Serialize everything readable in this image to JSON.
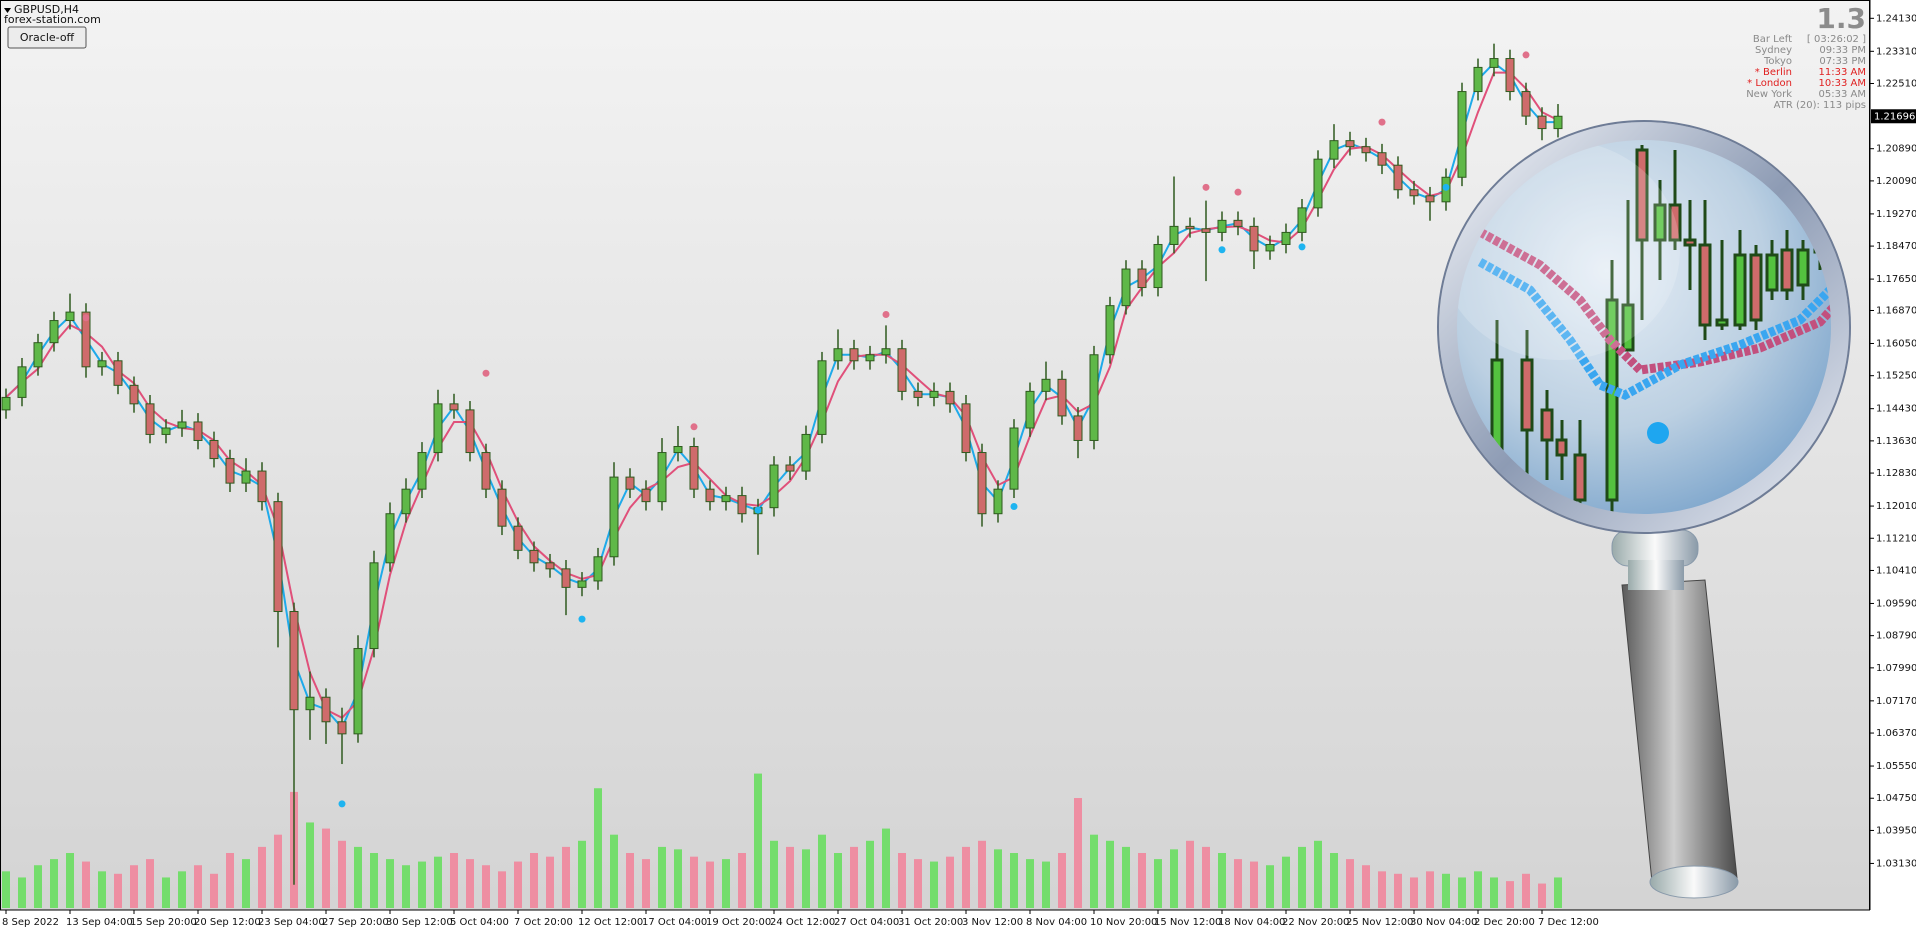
{
  "chart_data": {
    "type": "candlestick",
    "symbol": "GBPUSD,H4",
    "watermark": "forex-station.com",
    "button": "Oracle-off",
    "version": "1.3",
    "bar_left_label": "Bar Left",
    "bar_left": "[ 03:26:02 ]",
    "clocks": [
      {
        "city": "Sydney",
        "time": "09:33 PM",
        "color": "#8a8a8a"
      },
      {
        "city": "Tokyo",
        "time": "07:33 PM",
        "color": "#8a8a8a"
      },
      {
        "city": "* Berlin",
        "time": "11:33 AM",
        "color": "#e02020"
      },
      {
        "city": "* London",
        "time": "10:33 AM",
        "color": "#e02020"
      },
      {
        "city": "New York",
        "time": "05:33 AM",
        "color": "#8a8a8a"
      }
    ],
    "atr": "ATR (20): 113 pips",
    "categories": [
      "8 Sep 2022",
      null,
      null,
      null,
      "13 Sep 04:00",
      null,
      null,
      null,
      "15 Sep 20:00",
      null,
      null,
      null,
      "20 Sep 12:00",
      null,
      null,
      null,
      "23 Sep 04:00",
      null,
      null,
      null,
      "27 Sep 20:00",
      null,
      null,
      null,
      "30 Sep 12:00",
      null,
      null,
      null,
      "5 Oct 04:00",
      null,
      null,
      null,
      "7 Oct 20:00",
      null,
      null,
      null,
      "12 Oct 12:00",
      null,
      null,
      null,
      "17 Oct 04:00",
      null,
      null,
      null,
      "19 Oct 20:00",
      null,
      null,
      null,
      "24 Oct 12:00",
      null,
      null,
      null,
      "27 Oct 04:00",
      null,
      null,
      null,
      "31 Oct 20:00",
      null,
      null,
      null,
      "3 Nov 12:00",
      null,
      null,
      null,
      "8 Nov 04:00",
      null,
      null,
      null,
      "10 Nov 20:00",
      null,
      null,
      null,
      "15 Nov 12:00",
      null,
      null,
      null,
      "18 Nov 04:00",
      null,
      null,
      null,
      "22 Nov 20:00",
      null,
      null,
      null,
      "25 Nov 12:00",
      null,
      null,
      null,
      "30 Nov 04:00",
      null,
      null,
      null,
      "2 Dec 20:00",
      null,
      null,
      null,
      "7 Dec 12:00",
      null
    ],
    "ohlc": [
      [
        1.144,
        1.1493,
        1.1418,
        1.1471
      ],
      [
        1.1471,
        1.1569,
        1.1449,
        1.1547
      ],
      [
        1.1547,
        1.1629,
        1.1525,
        1.1607
      ],
      [
        1.1607,
        1.1684,
        1.1585,
        1.1662
      ],
      [
        1.1662,
        1.1729,
        1.164,
        1.1683
      ],
      [
        1.1683,
        1.1705,
        1.152,
        1.1547
      ],
      [
        1.1547,
        1.1584,
        1.1525,
        1.1562
      ],
      [
        1.1562,
        1.1584,
        1.1479,
        1.1501
      ],
      [
        1.1501,
        1.1523,
        1.1433,
        1.1455
      ],
      [
        1.1455,
        1.1477,
        1.1357,
        1.1379
      ],
      [
        1.1379,
        1.1417,
        1.1357,
        1.1395
      ],
      [
        1.1395,
        1.144,
        1.1373,
        1.141
      ],
      [
        1.141,
        1.1432,
        1.1342,
        1.1364
      ],
      [
        1.1364,
        1.1386,
        1.1297,
        1.1319
      ],
      [
        1.1319,
        1.1341,
        1.1236,
        1.1258
      ],
      [
        1.1258,
        1.132,
        1.1236,
        1.1288
      ],
      [
        1.1288,
        1.131,
        1.119,
        1.1212
      ],
      [
        1.1212,
        1.1234,
        1.085,
        1.0939
      ],
      [
        1.0939,
        1.0961,
        1.026,
        1.0695
      ],
      [
        1.0695,
        1.079,
        1.062,
        1.0726
      ],
      [
        1.0726,
        1.0748,
        1.061,
        1.0665
      ],
      [
        1.0665,
        1.07,
        1.056,
        1.0635
      ],
      [
        1.0635,
        1.088,
        1.0613,
        1.0847
      ],
      [
        1.0847,
        1.109,
        1.0825,
        1.106
      ],
      [
        1.106,
        1.121,
        1.1038,
        1.1182
      ],
      [
        1.1182,
        1.127,
        1.116,
        1.1243
      ],
      [
        1.1243,
        1.136,
        1.1221,
        1.1334
      ],
      [
        1.1334,
        1.149,
        1.1312,
        1.1455
      ],
      [
        1.1455,
        1.148,
        1.1418,
        1.144
      ],
      [
        1.144,
        1.1462,
        1.1312,
        1.1334
      ],
      [
        1.1334,
        1.1356,
        1.1221,
        1.1243
      ],
      [
        1.1243,
        1.1265,
        1.1129,
        1.1151
      ],
      [
        1.1151,
        1.1173,
        1.1069,
        1.1091
      ],
      [
        1.1091,
        1.1113,
        1.1038,
        1.106
      ],
      [
        1.106,
        1.1082,
        1.1023,
        1.1045
      ],
      [
        1.1045,
        1.1067,
        1.093,
        1.0999
      ],
      [
        1.0999,
        1.1037,
        1.0977,
        1.1015
      ],
      [
        1.1015,
        1.1097,
        1.0993,
        1.1075
      ],
      [
        1.1075,
        1.131,
        1.1053,
        1.1273
      ],
      [
        1.1273,
        1.1295,
        1.1221,
        1.1243
      ],
      [
        1.1243,
        1.1265,
        1.119,
        1.1212
      ],
      [
        1.1212,
        1.137,
        1.119,
        1.1334
      ],
      [
        1.1334,
        1.14,
        1.1312,
        1.1349
      ],
      [
        1.1349,
        1.1371,
        1.1221,
        1.1243
      ],
      [
        1.1243,
        1.1265,
        1.119,
        1.1212
      ],
      [
        1.1212,
        1.1249,
        1.119,
        1.1227
      ],
      [
        1.1227,
        1.1249,
        1.116,
        1.1182
      ],
      [
        1.1182,
        1.1219,
        1.108,
        1.1197
      ],
      [
        1.1197,
        1.1325,
        1.1175,
        1.1303
      ],
      [
        1.1303,
        1.1325,
        1.1266,
        1.1288
      ],
      [
        1.1288,
        1.1401,
        1.1266,
        1.1379
      ],
      [
        1.1379,
        1.1584,
        1.1357,
        1.1562
      ],
      [
        1.1562,
        1.164,
        1.154,
        1.1592
      ],
      [
        1.1592,
        1.1614,
        1.154,
        1.1562
      ],
      [
        1.1562,
        1.1599,
        1.154,
        1.1577
      ],
      [
        1.1577,
        1.165,
        1.1555,
        1.1592
      ],
      [
        1.1592,
        1.1614,
        1.1464,
        1.1486
      ],
      [
        1.1486,
        1.1508,
        1.1449,
        1.1471
      ],
      [
        1.1471,
        1.1508,
        1.1449,
        1.1486
      ],
      [
        1.1486,
        1.1508,
        1.1433,
        1.1455
      ],
      [
        1.1455,
        1.1477,
        1.1312,
        1.1334
      ],
      [
        1.1334,
        1.1356,
        1.115,
        1.1182
      ],
      [
        1.1182,
        1.1265,
        1.116,
        1.1243
      ],
      [
        1.1243,
        1.1417,
        1.1221,
        1.1395
      ],
      [
        1.1395,
        1.1508,
        1.1373,
        1.1486
      ],
      [
        1.1486,
        1.156,
        1.1464,
        1.1516
      ],
      [
        1.1516,
        1.1538,
        1.1403,
        1.1425
      ],
      [
        1.1425,
        1.1447,
        1.132,
        1.1364
      ],
      [
        1.1364,
        1.1599,
        1.1342,
        1.1577
      ],
      [
        1.1577,
        1.1721,
        1.1555,
        1.1699
      ],
      [
        1.1699,
        1.1812,
        1.1677,
        1.179
      ],
      [
        1.179,
        1.1812,
        1.1722,
        1.1744
      ],
      [
        1.1744,
        1.1873,
        1.1722,
        1.1851
      ],
      [
        1.1851,
        1.202,
        1.1829,
        1.1896
      ],
      [
        1.1896,
        1.1918,
        1.1868,
        1.189
      ],
      [
        1.189,
        1.196,
        1.176,
        1.1881
      ],
      [
        1.1881,
        1.1933,
        1.1859,
        1.1911
      ],
      [
        1.1911,
        1.1933,
        1.1874,
        1.1896
      ],
      [
        1.1896,
        1.1918,
        1.179,
        1.1835
      ],
      [
        1.1835,
        1.1873,
        1.1813,
        1.1851
      ],
      [
        1.1851,
        1.1903,
        1.1829,
        1.1881
      ],
      [
        1.1881,
        1.1964,
        1.1859,
        1.1942
      ],
      [
        1.1942,
        1.2085,
        1.192,
        1.2063
      ],
      [
        1.2063,
        1.215,
        1.2041,
        1.2109
      ],
      [
        1.2109,
        1.2131,
        1.2072,
        1.2094
      ],
      [
        1.2094,
        1.2116,
        1.2057,
        1.2079
      ],
      [
        1.2079,
        1.2101,
        1.2026,
        1.2048
      ],
      [
        1.2048,
        1.207,
        1.1965,
        1.1987
      ],
      [
        1.1987,
        1.2009,
        1.195,
        1.1972
      ],
      [
        1.1972,
        1.1994,
        1.191,
        1.1957
      ],
      [
        1.1957,
        1.204,
        1.1935,
        1.2018
      ],
      [
        1.2018,
        1.2253,
        1.1996,
        1.2231
      ],
      [
        1.2231,
        1.2313,
        1.2209,
        1.2291
      ],
      [
        1.2291,
        1.235,
        1.2269,
        1.2313
      ],
      [
        1.2313,
        1.2335,
        1.2209,
        1.2231
      ],
      [
        1.2231,
        1.2253,
        1.2148,
        1.217
      ],
      [
        1.217,
        1.2192,
        1.211,
        1.2139
      ],
      [
        1.2139,
        1.22,
        1.2117,
        1.21696
      ]
    ],
    "up_color": "#5fb848",
    "down_color": "#cf6b6b",
    "candle_outline": "#2f5a1f",
    "series": [
      {
        "color": "#1eaaea",
        "values": [
          1.1471,
          1.1509,
          1.1577,
          1.1635,
          1.1673,
          1.1615,
          1.1555,
          1.1532,
          1.1478,
          1.1417,
          1.1387,
          1.1403,
          1.1387,
          1.1342,
          1.1289,
          1.1273,
          1.125,
          1.1076,
          1.0817,
          1.0711,
          1.0696,
          1.065,
          1.0741,
          1.0954,
          1.1121,
          1.1213,
          1.1289,
          1.1395,
          1.1448,
          1.1387,
          1.1289,
          1.1197,
          1.1121,
          1.1076,
          1.1053,
          1.1022,
          1.1007,
          1.1045,
          1.1174,
          1.1258,
          1.1228,
          1.1273,
          1.1342,
          1.1296,
          1.1228,
          1.122,
          1.1205,
          1.119,
          1.125,
          1.1296,
          1.1334,
          1.1471,
          1.1577,
          1.1577,
          1.157,
          1.1585,
          1.1539,
          1.1479,
          1.1479,
          1.1471,
          1.1395,
          1.1258,
          1.1213,
          1.1319,
          1.1441,
          1.1501,
          1.1471,
          1.1395,
          1.1471,
          1.1638,
          1.1745,
          1.1767,
          1.1798,
          1.1874,
          1.1893,
          1.1886,
          1.1896,
          1.1904,
          1.1866,
          1.1843,
          1.1866,
          1.1912,
          1.2003,
          1.2086,
          1.2102,
          1.2087,
          1.2064,
          1.2018,
          1.198,
          1.1965,
          1.1988,
          1.2125,
          1.2261,
          1.2302,
          1.2272,
          1.2201,
          1.2155,
          1.2155
        ]
      },
      {
        "color": "#e0507a",
        "values": [
          1.1471,
          1.1509,
          1.1542,
          1.1605,
          1.1651,
          1.1631,
          1.1597,
          1.1537,
          1.1506,
          1.1445,
          1.141,
          1.1395,
          1.139,
          1.1364,
          1.1314,
          1.1288,
          1.1253,
          1.1146,
          1.0949,
          1.0787,
          1.0695,
          1.0675,
          1.0716,
          1.0847,
          1.103,
          1.1162,
          1.1253,
          1.1344,
          1.141,
          1.141,
          1.1339,
          1.1243,
          1.1162,
          1.1101,
          1.1065,
          1.1035,
          1.102,
          1.103,
          1.1121,
          1.1197,
          1.1243,
          1.1263,
          1.1298,
          1.1309,
          1.1268,
          1.1227,
          1.1207,
          1.1202,
          1.1227,
          1.1263,
          1.1323,
          1.141,
          1.1511,
          1.1572,
          1.1577,
          1.1577,
          1.1552,
          1.1516,
          1.1481,
          1.1471,
          1.1425,
          1.1324,
          1.1253,
          1.1273,
          1.1375,
          1.1466,
          1.1476,
          1.1435,
          1.1455,
          1.1547,
          1.1689,
          1.1744,
          1.1795,
          1.183,
          1.1879,
          1.1889,
          1.1894,
          1.1896,
          1.1881,
          1.1861,
          1.1856,
          1.1891,
          1.1962,
          1.2038,
          1.2089,
          1.2094,
          1.2074,
          1.2038,
          1.2002,
          1.1972,
          1.1982,
          1.2069,
          1.218,
          1.2278,
          1.2278,
          1.2238,
          1.218,
          1.216
        ]
      }
    ],
    "volume": [
      30,
      25,
      35,
      40,
      45,
      38,
      30,
      28,
      35,
      40,
      25,
      30,
      35,
      28,
      45,
      40,
      50,
      60,
      95,
      70,
      65,
      55,
      50,
      45,
      40,
      35,
      38,
      42,
      45,
      40,
      35,
      30,
      38,
      45,
      42,
      50,
      55,
      98,
      60,
      45,
      40,
      50,
      48,
      42,
      38,
      40,
      45,
      110,
      55,
      50,
      48,
      60,
      45,
      50,
      55,
      65,
      45,
      40,
      38,
      42,
      50,
      55,
      48,
      45,
      40,
      38,
      45,
      90,
      60,
      55,
      50,
      45,
      40,
      48,
      55,
      50,
      45,
      40,
      38,
      35,
      42,
      50,
      55,
      45,
      40,
      35,
      30,
      28,
      25,
      30,
      28,
      25,
      30,
      25,
      22,
      28,
      20,
      25
    ],
    "volume_up_color": "#74dd6c",
    "volume_down_color": "#ee8ea2",
    "sell_signals": {
      "color": "#e0708a",
      "index": [
        5,
        30,
        43,
        55,
        75,
        77,
        86,
        95
      ],
      "price": [
        1.1669,
        1.1531,
        1.1398,
        1.1677,
        1.1993,
        1.1981,
        1.2155,
        1.2322
      ]
    },
    "buy_signals": {
      "color": "#1eb4f0",
      "index": [
        21,
        36,
        47,
        63,
        76,
        81,
        90
      ],
      "price": [
        1.0461,
        1.092,
        1.1191,
        1.12,
        1.1838,
        1.1845,
        1.1993
      ]
    },
    "current_price": 1.21696,
    "ylim": [
      1.01973,
      1.24585
    ],
    "yticks": [
      {
        "value": 1.2413,
        "label": "1.24130"
      },
      {
        "value": 1.2331,
        "label": "1.23310"
      },
      {
        "value": 1.2251,
        "label": "1.22510"
      },
      {
        "value": 1.2089,
        "label": "1.20890"
      },
      {
        "value": 1.2009,
        "label": "1.20090"
      },
      {
        "value": 1.1927,
        "label": "1.19270"
      },
      {
        "value": 1.1847,
        "label": "1.18470"
      },
      {
        "value": 1.1765,
        "label": "1.17650"
      },
      {
        "value": 1.1687,
        "label": "1.16870"
      },
      {
        "value": 1.1605,
        "label": "1.16050"
      },
      {
        "value": 1.1525,
        "label": "1.15250"
      },
      {
        "value": 1.1443,
        "label": "1.14430"
      },
      {
        "value": 1.1363,
        "label": "1.13630"
      },
      {
        "value": 1.1283,
        "label": "1.12830"
      },
      {
        "value": 1.1201,
        "label": "1.12010"
      },
      {
        "value": 1.1121,
        "label": "1.11210"
      },
      {
        "value": 1.1041,
        "label": "1.10410"
      },
      {
        "value": 1.0959,
        "label": "1.09590"
      },
      {
        "value": 1.0879,
        "label": "1.08790"
      },
      {
        "value": 1.0799,
        "label": "1.07990"
      },
      {
        "value": 1.0717,
        "label": "1.07170"
      },
      {
        "value": 1.0637,
        "label": "1.06370"
      },
      {
        "value": 1.0555,
        "label": "1.05550"
      },
      {
        "value": 1.0475,
        "label": "1.04750"
      },
      {
        "value": 1.0395,
        "label": "1.03950"
      },
      {
        "value": 1.0313,
        "label": "1.03130"
      }
    ]
  }
}
